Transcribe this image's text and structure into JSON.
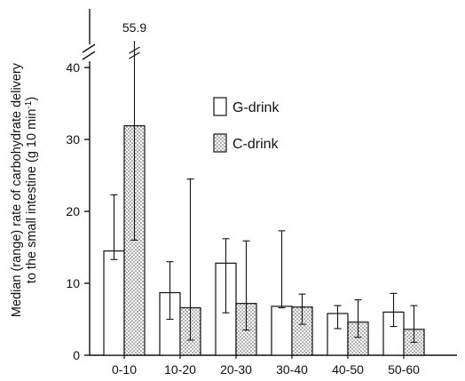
{
  "chart_data": {
    "type": "bar",
    "ylabel_line1": "Median (range) rate of carbohydrate delivery",
    "ylabel_line2": "to the small intestine (g 10 min",
    "ylabel_sup": "-1",
    "ylabel_close": ")",
    "categories": [
      "0-10",
      "10-20",
      "20-30",
      "30-40",
      "40-50",
      "50-60"
    ],
    "yticks": [
      0,
      10,
      20,
      30,
      40
    ],
    "ylim": [
      0,
      42
    ],
    "axis_break": true,
    "series": [
      {
        "name": "G-drink",
        "pattern": "none",
        "values": [
          14.5,
          8.7,
          12.8,
          6.8,
          5.8,
          6.0
        ],
        "low": [
          13.3,
          5.0,
          5.9,
          6.6,
          3.7,
          4.0
        ],
        "high": [
          22.3,
          13.0,
          16.2,
          17.3,
          6.9,
          8.6
        ]
      },
      {
        "name": "C-drink",
        "pattern": "dotted",
        "values": [
          31.9,
          6.6,
          7.2,
          6.7,
          4.6,
          3.6
        ],
        "low": [
          16.0,
          2.1,
          3.5,
          4.3,
          2.5,
          1.8
        ],
        "high": [
          55.9,
          24.5,
          15.9,
          8.5,
          7.7,
          6.9
        ]
      }
    ],
    "annotations": [
      {
        "text": "55.9",
        "series": 1,
        "category": 0
      }
    ],
    "legend_position": "right",
    "colors": {
      "axis": "#111111",
      "bar_fill": "#ffffff",
      "dot": "#444444"
    }
  }
}
